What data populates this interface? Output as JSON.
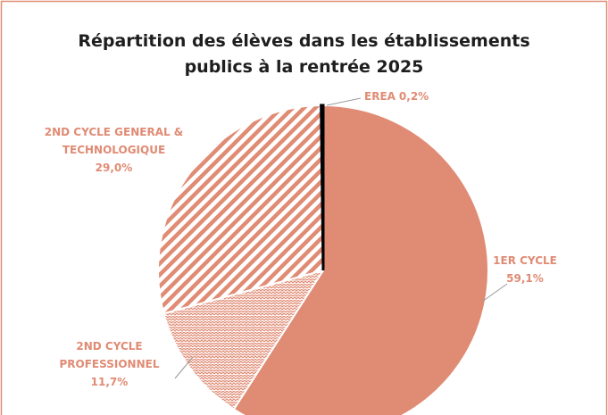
{
  "chart_data": {
    "type": "pie",
    "title": "Répartition des élèves dans les établissements publics à la rentrée 2025",
    "categories": [
      "1ER CYCLE",
      "2ND CYCLE PROFESSIONNEL",
      "2ND CYCLE GENERAL & TECHNOLOGIQUE",
      "EREA"
    ],
    "values": [
      59.1,
      11.7,
      29.0,
      0.2
    ],
    "value_labels": [
      "59,1%",
      "11,7%",
      "29,0%",
      "0,2%"
    ],
    "colors": [
      "#e08b74",
      "#e08b74",
      "#e08b74",
      "#000000"
    ],
    "fills": [
      "solid",
      "dots",
      "stripes",
      "solid"
    ]
  }
}
